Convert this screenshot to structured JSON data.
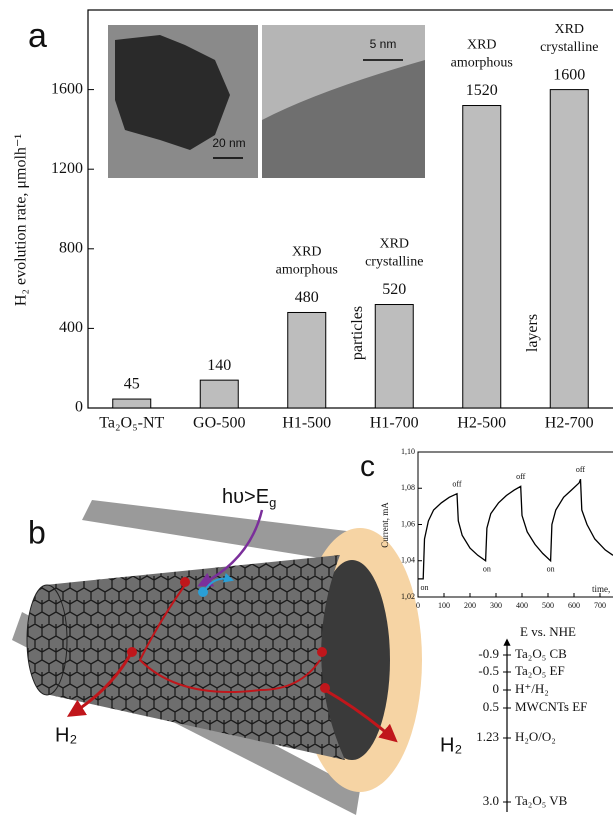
{
  "panel_labels": [
    "a",
    "b",
    "c"
  ],
  "chart_data": [
    {
      "type": "bar",
      "y_label": "H₂ evolution rate, μmolh⁻¹",
      "categories": [
        "Ta₂O₅-NT",
        "GO-500",
        "H1-500",
        "H1-700",
        "H2-500",
        "H2-700"
      ],
      "values": [
        45,
        140,
        480,
        520,
        1520,
        1600
      ],
      "color": "#bdbdbd",
      "top_notes": [
        null,
        null,
        [
          "XRD",
          "amorphous"
        ],
        [
          "XRD",
          "crystalline"
        ],
        [
          "XRD",
          "amorphous"
        ],
        [
          "XRD",
          "crystalline"
        ]
      ],
      "side_notes": [
        null,
        null,
        null,
        "particles",
        null,
        "layers"
      ],
      "ylim": [
        0,
        2000
      ],
      "yticks": [
        0,
        400,
        800,
        1200,
        1600
      ]
    },
    {
      "type": "line",
      "y_label": "Current, mA",
      "x_label": "time,",
      "x": [
        0,
        20,
        25,
        40,
        60,
        90,
        120,
        150,
        155,
        170,
        200,
        230,
        260,
        265,
        280,
        310,
        340,
        370,
        395,
        400,
        420,
        450,
        480,
        510,
        515,
        530,
        560,
        590,
        620,
        625,
        630,
        650,
        680,
        720,
        750
      ],
      "series": [
        {
          "color": "#000000",
          "values": [
            1.03,
            1.03,
            1.052,
            1.062,
            1.068,
            1.072,
            1.075,
            1.077,
            1.062,
            1.054,
            1.047,
            1.043,
            1.04,
            1.058,
            1.066,
            1.072,
            1.076,
            1.079,
            1.081,
            1.065,
            1.056,
            1.049,
            1.044,
            1.04,
            1.06,
            1.068,
            1.075,
            1.079,
            1.083,
            1.085,
            1.068,
            1.06,
            1.052,
            1.046,
            1.043
          ]
        }
      ],
      "annotations": [
        {
          "text": "on",
          "x": 25,
          "y": 1.025
        },
        {
          "text": "off",
          "x": 150,
          "y": 1.082
        },
        {
          "text": "on",
          "x": 265,
          "y": 1.035
        },
        {
          "text": "off",
          "x": 395,
          "y": 1.086
        },
        {
          "text": "on",
          "x": 510,
          "y": 1.035
        },
        {
          "text": "off",
          "x": 625,
          "y": 1.09
        }
      ],
      "xlim": [
        0,
        750
      ],
      "xticks": [
        0,
        100,
        200,
        300,
        400,
        500,
        600,
        700
      ],
      "ylim": [
        1.02,
        1.1
      ],
      "yticks": [
        {
          "value": 1.02,
          "label": "1,02"
        },
        {
          "value": 1.04,
          "label": "1,04"
        },
        {
          "value": 1.06,
          "label": "1,06"
        },
        {
          "value": 1.08,
          "label": "1,08"
        },
        {
          "value": 1.1,
          "label": "1,10"
        }
      ]
    }
  ],
  "insets": [
    {
      "scale_bar": "20 nm"
    },
    {
      "scale_bar": "5 nm"
    }
  ],
  "scheme": {
    "photon": [
      "hυ>E",
      "g"
    ],
    "products": [
      "H₂",
      "H₂"
    ]
  },
  "energy_diagram": {
    "axis_label": "E vs. NHE",
    "levels": [
      {
        "value": "-0.9",
        "label": "Ta₂O₅ CB"
      },
      {
        "value": "-0.5",
        "label": "Ta₂O₅ EF"
      },
      {
        "value": "0",
        "label": "H⁺/H₂"
      },
      {
        "value": "0.5",
        "label": "MWCNTs EF"
      },
      {
        "value": "1.23",
        "label": "H₂O/O₂"
      },
      {
        "value": "3.0",
        "label": "Ta₂O₅ VB"
      }
    ]
  }
}
